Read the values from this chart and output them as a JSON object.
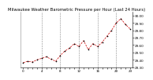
{
  "title": "Milwaukee Weather Barometric Pressure per Hour (Last 24 Hours)",
  "hours": [
    0,
    1,
    2,
    3,
    4,
    5,
    6,
    7,
    8,
    9,
    10,
    11,
    12,
    13,
    14,
    15,
    16,
    17,
    18,
    19,
    20,
    21,
    22,
    23
  ],
  "pressure": [
    29.36,
    29.38,
    29.37,
    29.4,
    29.42,
    29.44,
    29.41,
    29.38,
    29.46,
    29.52,
    29.56,
    29.62,
    29.58,
    29.66,
    29.54,
    29.62,
    29.58,
    29.64,
    29.72,
    29.8,
    29.9,
    29.96,
    29.88,
    29.82
  ],
  "dot_color": "#000000",
  "line_color": "#cc0000",
  "bg_color": "#ffffff",
  "grid_color": "#888888",
  "title_color": "#000000",
  "ylim_min": 29.3,
  "ylim_max": 30.05,
  "yticks": [
    29.3,
    29.4,
    29.5,
    29.6,
    29.7,
    29.8,
    29.9,
    30.0
  ],
  "ytick_labels": [
    "29.30",
    "29.40",
    "29.50",
    "29.60",
    "29.70",
    "29.80",
    "29.90",
    "30.00"
  ],
  "xlabel_hours": [
    "0",
    "",
    "",
    "",
    "4",
    "",
    "",
    "",
    "8",
    "",
    "",
    "",
    "12",
    "",
    "",
    "",
    "16",
    "",
    "",
    "",
    "20",
    "",
    "",
    "23"
  ],
  "title_fontsize": 3.8,
  "tick_fontsize": 3.0,
  "dot_size": 1.5,
  "line_width": 0.5,
  "vgrid_positions": [
    4,
    8,
    12,
    16,
    20
  ]
}
